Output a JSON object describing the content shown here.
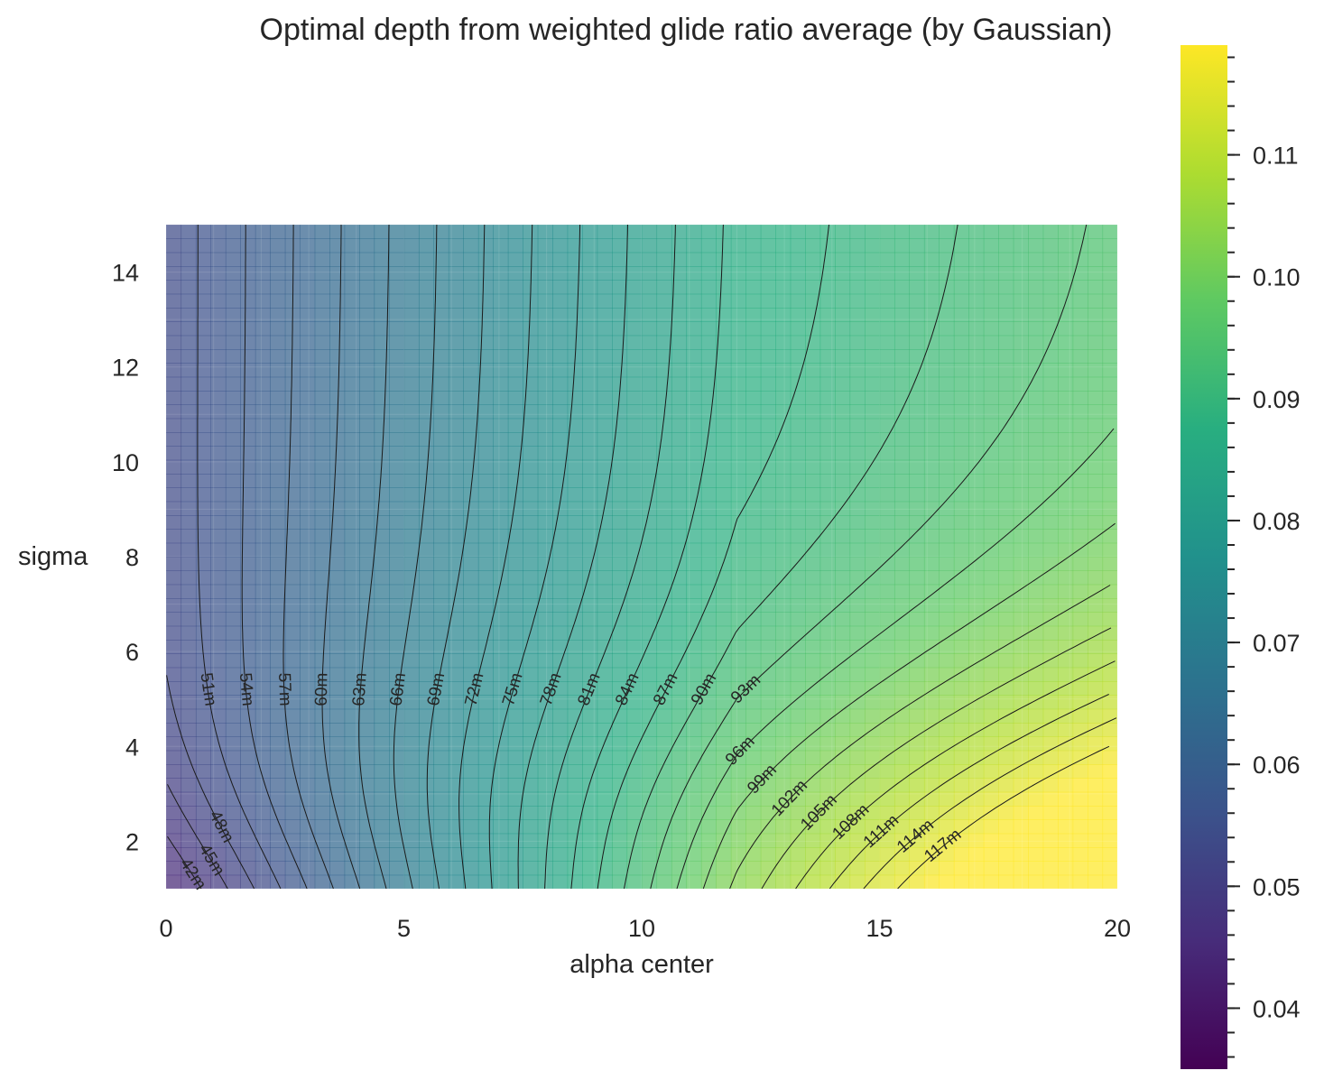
{
  "chart_data": {
    "type": "contour",
    "title": "Optimal depth from weighted glide ratio average (by Gaussian)",
    "xlabel": "alpha center",
    "ylabel": "sigma",
    "xlim": [
      0,
      20
    ],
    "ylim": [
      1,
      15
    ],
    "x_ticks": [
      "0",
      "5",
      "10",
      "15",
      "20"
    ],
    "y_ticks": [
      "2",
      "4",
      "6",
      "8",
      "10",
      "12",
      "14"
    ],
    "colormap": "viridis",
    "colorbar": {
      "range": [
        0.035,
        0.119
      ],
      "ticks": [
        "0.04",
        "0.05",
        "0.06",
        "0.07",
        "0.08",
        "0.09",
        "0.10",
        "0.11"
      ]
    },
    "contour_labels": [
      "42m",
      "45m",
      "48m",
      "51m",
      "54m",
      "57m",
      "60m",
      "63m",
      "66m",
      "69m",
      "72m",
      "75m",
      "78m",
      "81m",
      "84m",
      "87m",
      "90m",
      "93m",
      "96m",
      "99m",
      "102m",
      "105m",
      "108m",
      "111m",
      "114m",
      "117m"
    ],
    "grid": true
  }
}
